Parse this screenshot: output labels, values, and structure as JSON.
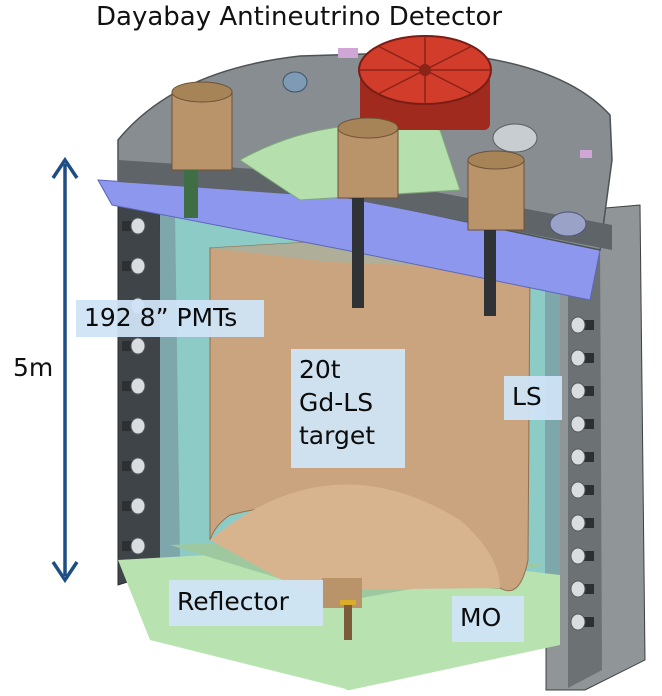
{
  "title": "Dayabay Antineutrino Detector",
  "dimension": {
    "label": "5m"
  },
  "labels": {
    "pmts": "192 8” PMTs",
    "target": "20t\nGd-LS\ntarget",
    "ls": "LS",
    "reflector": "Reflector",
    "mo": "MO"
  },
  "colors": {
    "lid": "#868b8f",
    "lid_dark": "#5f6468",
    "red_flange": "#d23c2b",
    "pmt_can": "#b9946b",
    "acrylic_target": "#c9a47e",
    "outer_vessel": "#7c9da2",
    "ls_region": "#86c4c0",
    "blue_band": "#8d97ee",
    "green_plate": "#b5e0ad",
    "steel_wall": "#4a4f52",
    "arrow": "#1d4e86"
  },
  "icons": {
    "pmt": "pmt-icon",
    "arrow": "double-arrow-icon"
  }
}
